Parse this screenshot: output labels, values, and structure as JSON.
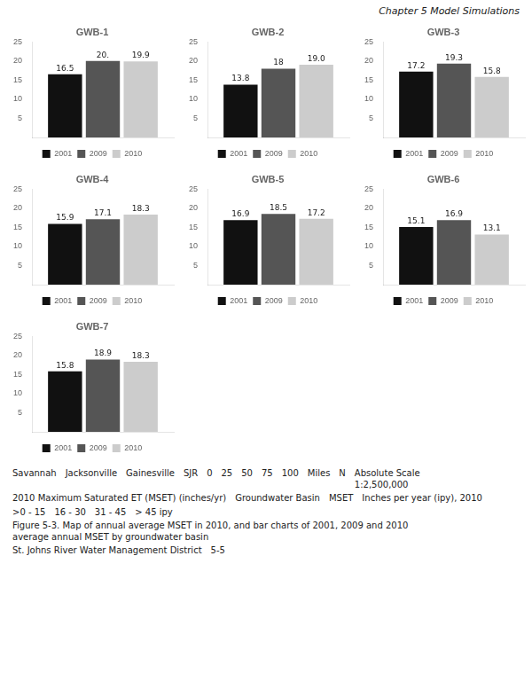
{
  "chart_data": [
    {
      "type": "bar",
      "title": "GWB-1",
      "categories": [
        null
      ],
      "series": [
        {
          "name": "2001",
          "color": "#111111",
          "values": [
            16.5
          ],
          "value_labels": [
            "16.5"
          ]
        },
        {
          "name": "2009",
          "color": "#555555",
          "values": [
            20.0
          ],
          "value_labels": [
            "20."
          ]
        },
        {
          "name": "2010",
          "color": "#cccccc",
          "values": [
            19.9
          ],
          "value_labels": [
            "19.9"
          ]
        }
      ],
      "ylim": [
        0,
        25
      ],
      "yticks": [
        5,
        10,
        15,
        20,
        25
      ],
      "grid": false,
      "legend": "bottom",
      "data_labels": true,
      "tick_labels": "y"
    },
    {
      "type": "bar",
      "title": "GWB-2",
      "categories": [
        null
      ],
      "series": [
        {
          "name": "2001",
          "color": "#111111",
          "values": [
            13.8
          ],
          "value_labels": [
            "13.8"
          ]
        },
        {
          "name": "2009",
          "color": "#555555",
          "values": [
            18.0
          ],
          "value_labels": [
            "18"
          ]
        },
        {
          "name": "2010",
          "color": "#cccccc",
          "values": [
            19.0
          ],
          "value_labels": [
            "19.0"
          ]
        }
      ],
      "ylim": [
        0,
        25
      ],
      "yticks": [
        5,
        10,
        15,
        20,
        25
      ],
      "grid": false,
      "legend": "bottom",
      "data_labels": true,
      "tick_labels": "y"
    },
    {
      "type": "bar",
      "title": "GWB-3",
      "categories": [
        null
      ],
      "series": [
        {
          "name": "2001",
          "color": "#111111",
          "values": [
            17.2
          ],
          "value_labels": [
            "17.2"
          ]
        },
        {
          "name": "2009",
          "color": "#555555",
          "values": [
            19.3
          ],
          "value_labels": [
            "19.3"
          ]
        },
        {
          "name": "2010",
          "color": "#cccccc",
          "values": [
            15.8
          ],
          "value_labels": [
            "15.8"
          ]
        }
      ],
      "ylim": [
        0,
        25
      ],
      "yticks": [
        5,
        10,
        15,
        20,
        25
      ],
      "grid": false,
      "legend": "bottom",
      "data_labels": true,
      "tick_labels": "y"
    },
    {
      "type": "bar",
      "title": "GWB-4",
      "categories": [
        null
      ],
      "series": [
        {
          "name": "2001",
          "color": "#111111",
          "values": [
            15.9
          ],
          "value_labels": [
            "15.9"
          ]
        },
        {
          "name": "2009",
          "color": "#555555",
          "values": [
            17.1
          ],
          "value_labels": [
            "17.1"
          ]
        },
        {
          "name": "2010",
          "color": "#cccccc",
          "values": [
            18.3
          ],
          "value_labels": [
            "18.3"
          ]
        }
      ],
      "ylim": [
        0,
        25
      ],
      "yticks": [
        5,
        10,
        15,
        20,
        25
      ],
      "grid": false,
      "legend": "bottom",
      "data_labels": true,
      "tick_labels": "y"
    },
    {
      "type": "bar",
      "title": "GWB-5",
      "categories": [
        null
      ],
      "series": [
        {
          "name": "2001",
          "color": "#111111",
          "values": [
            16.9
          ],
          "value_labels": [
            "16.9"
          ]
        },
        {
          "name": "2009",
          "color": "#555555",
          "values": [
            18.5
          ],
          "value_labels": [
            "18.5"
          ]
        },
        {
          "name": "2010",
          "color": "#cccccc",
          "values": [
            17.2
          ],
          "value_labels": [
            "17.2"
          ]
        }
      ],
      "ylim": [
        0,
        25
      ],
      "yticks": [
        5,
        10,
        15,
        20,
        25
      ],
      "grid": false,
      "legend": "bottom",
      "data_labels": true,
      "tick_labels": "y"
    },
    {
      "type": "bar",
      "title": "GWB-6",
      "categories": [
        null
      ],
      "series": [
        {
          "name": "2001",
          "color": "#111111",
          "values": [
            15.1
          ],
          "value_labels": [
            "15.1"
          ]
        },
        {
          "name": "2009",
          "color": "#555555",
          "values": [
            16.9
          ],
          "value_labels": [
            "16.9"
          ]
        },
        {
          "name": "2010",
          "color": "#cccccc",
          "values": [
            13.1
          ],
          "value_labels": [
            "13.1"
          ]
        }
      ],
      "ylim": [
        0,
        25
      ],
      "yticks": [
        5,
        10,
        15,
        20,
        25
      ],
      "grid": false,
      "legend": "bottom",
      "data_labels": true,
      "tick_labels": "y"
    },
    {
      "type": "bar",
      "title": "GWB-7",
      "categories": [
        null
      ],
      "series": [
        {
          "name": "2001",
          "color": "#111111",
          "values": [
            15.8
          ],
          "value_labels": [
            "15.8"
          ]
        },
        {
          "name": "2009",
          "color": "#555555",
          "values": [
            18.9
          ],
          "value_labels": [
            "18.9"
          ]
        },
        {
          "name": "2010",
          "color": "#cccccc",
          "values": [
            18.3
          ],
          "value_labels": [
            "18.3"
          ]
        }
      ],
      "ylim": [
        0,
        25
      ],
      "yticks": [
        5,
        10,
        15,
        20,
        25
      ],
      "grid": false,
      "legend": "bottom",
      "data_labels": true,
      "tick_labels": "y"
    }
  ],
  "annotations": [
    "Chapter 5 Model Simulations",
    "Savannah",
    "Jacksonville",
    "Gainesville",
    "SJR",
    "0",
    "25",
    "50",
    "75",
    "100",
    "Miles",
    "N",
    "Absolute Scale\n1:2,500,000",
    "2010 Maximum Saturated ET (MSET) (inches/yr)",
    "Groundwater Basin",
    "MSET",
    "Inches per year (ipy), 2010",
    ">0 - 15",
    "16 - 30",
    "31 - 45",
    "> 45 ipy",
    "Figure 5-3.      Map of annual average MSET in 2010, and bar charts of 2001, 2009 and 2010\naverage annual MSET by groundwater basin",
    "St. Johns River Water Management District",
    "5-5"
  ]
}
